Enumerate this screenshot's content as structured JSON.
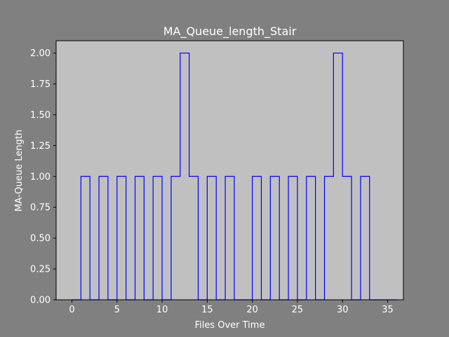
{
  "chart_data": {
    "type": "line",
    "step": "post",
    "title": "MA_Queue_length_Stair",
    "xlabel": "Files Over Time",
    "ylabel": "MA-Queue Length",
    "xlim": [
      -1.75,
      36.75
    ],
    "ylim": [
      0,
      2.1
    ],
    "xticks": [
      0,
      5,
      10,
      15,
      20,
      25,
      30,
      35
    ],
    "yticks": [
      0.0,
      0.25,
      0.5,
      0.75,
      1.0,
      1.25,
      1.5,
      1.75,
      2.0
    ],
    "xtick_labels": [
      "0",
      "5",
      "10",
      "15",
      "20",
      "25",
      "30",
      "35"
    ],
    "ytick_labels": [
      "0.00",
      "0.25",
      "0.50",
      "0.75",
      "1.00",
      "1.25",
      "1.50",
      "1.75",
      "2.00"
    ],
    "grid": false,
    "colors": {
      "line": "#0000ff",
      "plot_background": "#c0c0c0",
      "figure_background": "#808080"
    },
    "series": [
      {
        "x": [
          0,
          1,
          2,
          3,
          4,
          5,
          6,
          7,
          8,
          9,
          10,
          11,
          12,
          13,
          14,
          15,
          16,
          17,
          18,
          19,
          20,
          21,
          22,
          23,
          24,
          25,
          26,
          27,
          28,
          29,
          30,
          31,
          32,
          33,
          34,
          35
        ],
        "values": [
          0,
          1,
          0,
          1,
          0,
          1,
          0,
          1,
          0,
          1,
          0,
          1,
          2,
          1,
          0,
          1,
          0,
          1,
          0,
          0,
          1,
          0,
          1,
          0,
          1,
          0,
          1,
          0,
          1,
          2,
          1,
          0,
          1,
          0,
          0,
          0
        ]
      }
    ]
  }
}
